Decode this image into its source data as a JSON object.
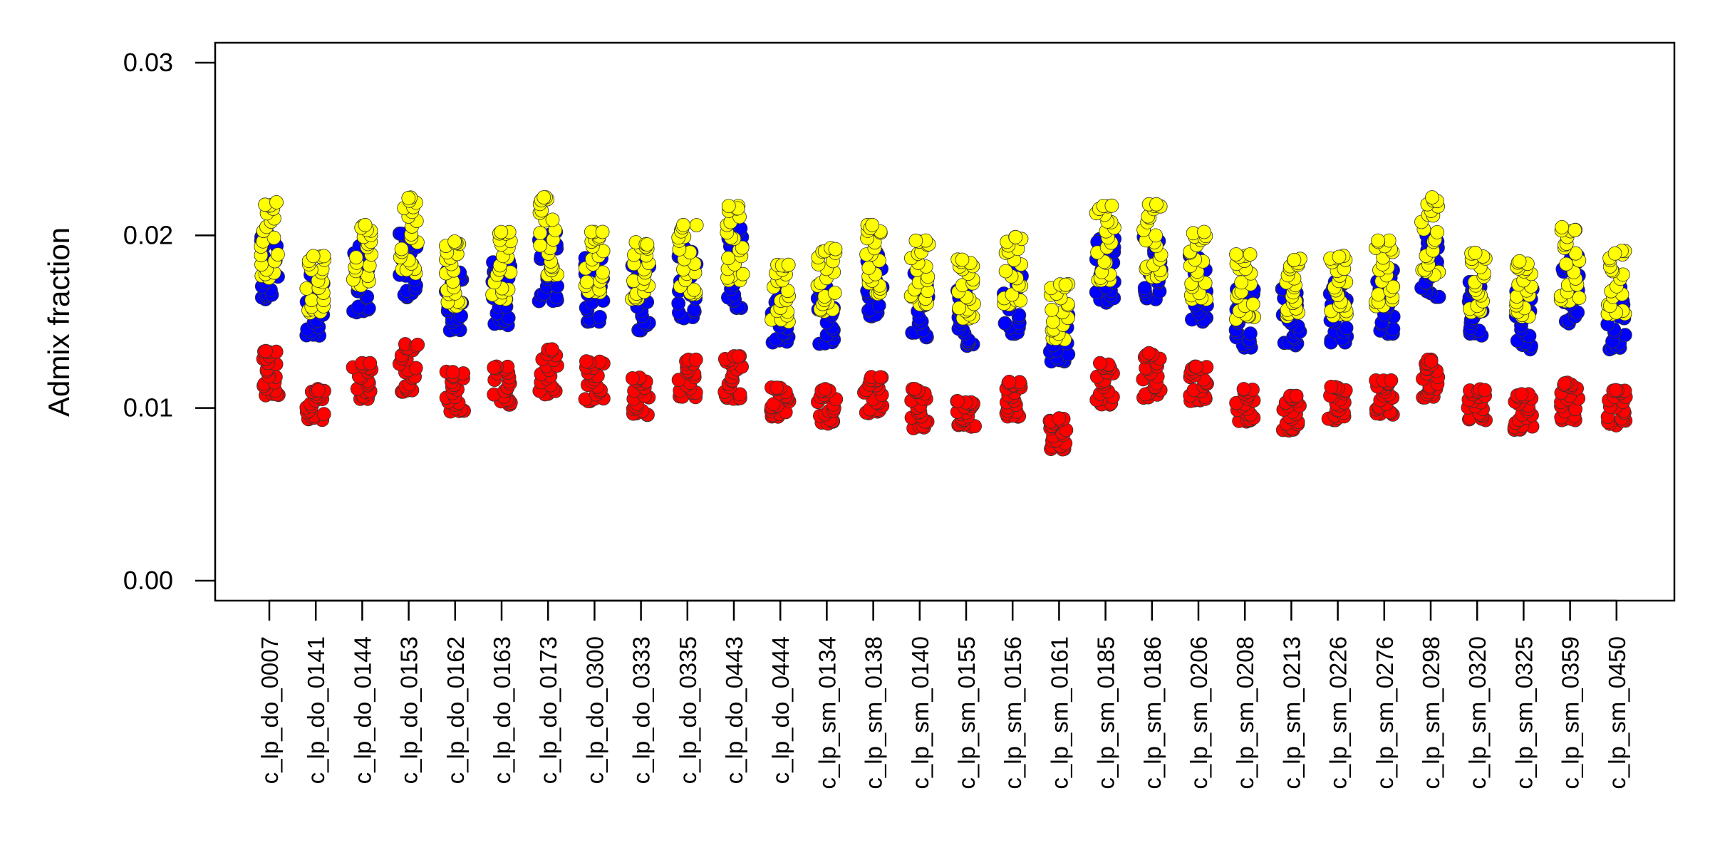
{
  "chart_data": {
    "type": "scatter",
    "ylabel": "Admix fraction",
    "ylim": [
      0,
      0.03
    ],
    "yticks": [
      "0.00",
      "0.01",
      "0.02",
      "0.03"
    ],
    "grid": false,
    "legend": "none",
    "categories": [
      "c_lp_do_0007",
      "c_lp_do_0141",
      "c_lp_do_0144",
      "c_lp_do_0153",
      "c_lp_do_0162",
      "c_lp_do_0163",
      "c_lp_do_0173",
      "c_lp_do_0300",
      "c_lp_do_0333",
      "c_lp_do_0335",
      "c_lp_do_0443",
      "c_lp_do_0444",
      "c_lp_sm_0134",
      "c_lp_sm_0138",
      "c_lp_sm_0140",
      "c_lp_sm_0155",
      "c_lp_sm_0156",
      "c_lp_sm_0161",
      "c_lp_sm_0185",
      "c_lp_sm_0186",
      "c_lp_sm_0206",
      "c_lp_sm_0208",
      "c_lp_sm_0213",
      "c_lp_sm_0226",
      "c_lp_sm_0276",
      "c_lp_sm_0298",
      "c_lp_sm_0320",
      "c_lp_sm_0325",
      "c_lp_sm_0359",
      "c_lp_sm_0450"
    ],
    "series": [
      {
        "color": "#ff0000",
        "ranges": [
          [
            0.0107,
            0.0133
          ],
          [
            0.0093,
            0.0111
          ],
          [
            0.0105,
            0.0126
          ],
          [
            0.0109,
            0.0137
          ],
          [
            0.0098,
            0.0121
          ],
          [
            0.0102,
            0.0124
          ],
          [
            0.0108,
            0.0134
          ],
          [
            0.0104,
            0.0127
          ],
          [
            0.0096,
            0.0118
          ],
          [
            0.0106,
            0.0128
          ],
          [
            0.0105,
            0.013
          ],
          [
            0.0095,
            0.0112
          ],
          [
            0.0091,
            0.0111
          ],
          [
            0.0097,
            0.0118
          ],
          [
            0.0088,
            0.0111
          ],
          [
            0.0089,
            0.0104
          ],
          [
            0.0095,
            0.0116
          ],
          [
            0.0076,
            0.0094
          ],
          [
            0.0102,
            0.0126
          ],
          [
            0.0106,
            0.0132
          ],
          [
            0.0104,
            0.0124
          ],
          [
            0.0092,
            0.0111
          ],
          [
            0.0087,
            0.0107
          ],
          [
            0.0093,
            0.0113
          ],
          [
            0.0096,
            0.0116
          ],
          [
            0.0106,
            0.0128
          ],
          [
            0.0093,
            0.0111
          ],
          [
            0.0087,
            0.0108
          ],
          [
            0.0093,
            0.0115
          ],
          [
            0.009,
            0.0111
          ]
        ]
      },
      {
        "color": "#0000ff",
        "ranges": [
          [
            0.0163,
            0.0202
          ],
          [
            0.0141,
            0.0178
          ],
          [
            0.0154,
            0.0196
          ],
          [
            0.0164,
            0.0201
          ],
          [
            0.0145,
            0.018
          ],
          [
            0.0148,
            0.0185
          ],
          [
            0.0161,
            0.0202
          ],
          [
            0.015,
            0.0188
          ],
          [
            0.0145,
            0.0183
          ],
          [
            0.0152,
            0.0193
          ],
          [
            0.0158,
            0.0204
          ],
          [
            0.0138,
            0.0168
          ],
          [
            0.0137,
            0.017
          ],
          [
            0.0153,
            0.019
          ],
          [
            0.0141,
            0.0178
          ],
          [
            0.0136,
            0.0168
          ],
          [
            0.0143,
            0.018
          ],
          [
            0.0127,
            0.0155
          ],
          [
            0.0161,
            0.0198
          ],
          [
            0.0163,
            0.0199
          ],
          [
            0.015,
            0.019
          ],
          [
            0.0135,
            0.017
          ],
          [
            0.0136,
            0.0169
          ],
          [
            0.0138,
            0.0173
          ],
          [
            0.0143,
            0.0181
          ],
          [
            0.0164,
            0.02
          ],
          [
            0.0142,
            0.0173
          ],
          [
            0.0134,
            0.0169
          ],
          [
            0.0149,
            0.0188
          ],
          [
            0.0134,
            0.017
          ]
        ]
      },
      {
        "color": "#ffff00",
        "ranges": [
          [
            0.0175,
            0.022
          ],
          [
            0.0155,
            0.0188
          ],
          [
            0.0171,
            0.0206
          ],
          [
            0.0178,
            0.0222
          ],
          [
            0.0159,
            0.0197
          ],
          [
            0.0163,
            0.0202
          ],
          [
            0.0177,
            0.0222
          ],
          [
            0.0167,
            0.0202
          ],
          [
            0.0163,
            0.0196
          ],
          [
            0.0166,
            0.0206
          ],
          [
            0.0174,
            0.0217
          ],
          [
            0.015,
            0.0184
          ],
          [
            0.0156,
            0.0193
          ],
          [
            0.0166,
            0.0206
          ],
          [
            0.016,
            0.0197
          ],
          [
            0.0152,
            0.0186
          ],
          [
            0.0159,
            0.0199
          ],
          [
            0.0139,
            0.0172
          ],
          [
            0.0174,
            0.0218
          ],
          [
            0.0176,
            0.0218
          ],
          [
            0.0163,
            0.0202
          ],
          [
            0.0151,
            0.0189
          ],
          [
            0.0153,
            0.0187
          ],
          [
            0.0153,
            0.0189
          ],
          [
            0.0159,
            0.0197
          ],
          [
            0.0177,
            0.0222
          ],
          [
            0.0155,
            0.0191
          ],
          [
            0.0153,
            0.0185
          ],
          [
            0.0162,
            0.0205
          ],
          [
            0.0153,
            0.0191
          ]
        ]
      }
    ]
  }
}
